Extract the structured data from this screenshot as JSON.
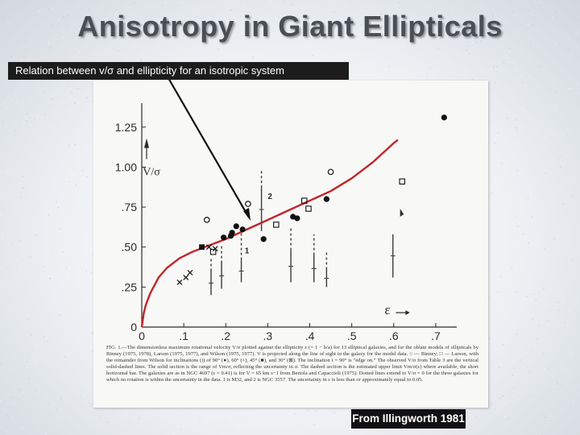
{
  "slide": {
    "title": "Anisotropy in Giant Ellipticals",
    "caption": "Relation between v/σ and ellipticity for an isotropic system",
    "credit": "From Illingworth 1981"
  },
  "figure": {
    "caption_text": "FIG. 1.—The dimensionless maximum rotational velocity V/σ plotted against the ellipticity ε (= 1 − b/a) for 13 elliptical galaxies, and for the oblate models of ellipticals by Binney (1975, 1978), Larson (1975, 1977), and Wilson (1975, 1977). V is projected along the line of sight in the galaxy for the model data. ○ — Binney; □ — Larson, with the remainder from Wilson for inclinations (i) of 90° (●), 60° (×), 45° (■), and 30° (⊠). The inclination i = 90° is \"edge on.\" The observed V/σ from Table 3 are the vertical solid-dashed lines. The solid section is the range of Vm/σ, reflecting the uncertainty in σ. The dashed section is the estimated upper limit Vm/σ(ε) where available, the short horizontal bar. The galaxies are as in NGC 4697 (ε = 0.41) is for V = 65 km s−1 from Bertola and Capaccioli (1975). Dotted lines extend to V/σ = 0 for the three galaxies for which no rotation is within the uncertainty in the data. 1 is M32, and 2 is NGC 3557. The uncertainty in ε is less than or approximately equal to 0.05.",
    "chart_data": {
      "type": "scatter",
      "xlabel": "ε",
      "ylabel": "V/σ",
      "xlim": [
        0,
        0.75
      ],
      "ylim": [
        0,
        1.4
      ],
      "x_ticks": [
        "0",
        ".1",
        ".2",
        ".3",
        ".4",
        ".5",
        ".6",
        ".7"
      ],
      "y_ticks": [
        "0",
        ".25",
        ".50",
        ".75",
        "1.00",
        "1.25"
      ],
      "isotropic_curve": {
        "color": "#c0262c",
        "x": [
          0,
          0.005,
          0.01,
          0.02,
          0.04,
          0.06,
          0.09,
          0.12,
          0.16,
          0.2,
          0.25,
          0.3,
          0.35,
          0.4,
          0.45,
          0.5,
          0.55,
          0.6,
          0.61
        ],
        "y": [
          0,
          0.09,
          0.14,
          0.21,
          0.31,
          0.37,
          0.43,
          0.47,
          0.51,
          0.55,
          0.61,
          0.67,
          0.73,
          0.79,
          0.85,
          0.93,
          1.03,
          1.15,
          1.17
        ]
      },
      "model_points": [
        {
          "marker": "filled-circle",
          "x": 0.72,
          "y": 1.31
        },
        {
          "marker": "filled-circle",
          "x": 0.225,
          "y": 0.63
        },
        {
          "marker": "filled-circle",
          "x": 0.215,
          "y": 0.59
        },
        {
          "marker": "filled-circle",
          "x": 0.195,
          "y": 0.56
        },
        {
          "marker": "filled-circle",
          "x": 0.212,
          "y": 0.57
        },
        {
          "marker": "filled-circle",
          "x": 0.24,
          "y": 0.61
        },
        {
          "marker": "filled-circle",
          "x": 0.29,
          "y": 0.55
        },
        {
          "marker": "filled-circle",
          "x": 0.37,
          "y": 0.68
        },
        {
          "marker": "filled-circle",
          "x": 0.36,
          "y": 0.69
        },
        {
          "marker": "filled-circle",
          "x": 0.44,
          "y": 0.8
        },
        {
          "marker": "open-circle",
          "x": 0.155,
          "y": 0.67
        },
        {
          "marker": "open-circle",
          "x": 0.253,
          "y": 0.77
        },
        {
          "marker": "open-circle",
          "x": 0.45,
          "y": 0.97
        },
        {
          "marker": "open-square",
          "x": 0.32,
          "y": 0.64
        },
        {
          "marker": "open-square",
          "x": 0.387,
          "y": 0.79
        },
        {
          "marker": "open-square",
          "x": 0.397,
          "y": 0.74
        },
        {
          "marker": "open-square",
          "x": 0.62,
          "y": 0.91
        },
        {
          "marker": "filled-square",
          "x": 0.143,
          "y": 0.5
        },
        {
          "marker": "open-square",
          "x": 0.17,
          "y": 0.47
        },
        {
          "marker": "cross",
          "x": 0.16,
          "y": 0.5
        },
        {
          "marker": "cross",
          "x": 0.175,
          "y": 0.49
        },
        {
          "marker": "cross",
          "x": 0.09,
          "y": 0.28
        },
        {
          "marker": "cross",
          "x": 0.115,
          "y": 0.34
        },
        {
          "marker": "cross",
          "x": 0.105,
          "y": 0.31
        }
      ],
      "observed_ranges": [
        {
          "x": 0.165,
          "solid": [
            0.2,
            0.35
          ],
          "dashed": [
            0.35,
            0.43
          ]
        },
        {
          "x": 0.19,
          "solid": [
            0.24,
            0.4
          ],
          "dashed": [
            0.4,
            0.52
          ]
        },
        {
          "x": 0.237,
          "solid": [
            0.28,
            0.42
          ],
          "dashed": [
            0.42,
            0.59
          ]
        },
        {
          "x": 0.285,
          "solid": [
            0.6,
            0.87
          ],
          "dashed": [
            0.87,
            0.98
          ]
        },
        {
          "x": 0.355,
          "solid": [
            0.28,
            0.48
          ],
          "dashed": [
            0.48,
            0.62
          ]
        },
        {
          "x": 0.41,
          "solid": [
            0.28,
            0.45
          ],
          "dashed": [
            0.45,
            0.58
          ]
        },
        {
          "x": 0.44,
          "solid": [
            0.25,
            0.36
          ],
          "dashed": [
            0.36,
            0.47
          ]
        },
        {
          "x": 0.598,
          "solid": [
            0.31,
            0.58
          ],
          "dashed": [
            0.58,
            0.58
          ]
        }
      ],
      "annotations": [
        {
          "text": "1",
          "x": 0.245,
          "y": 0.46
        },
        {
          "text": "2",
          "x": 0.3,
          "y": 0.8
        }
      ]
    }
  }
}
